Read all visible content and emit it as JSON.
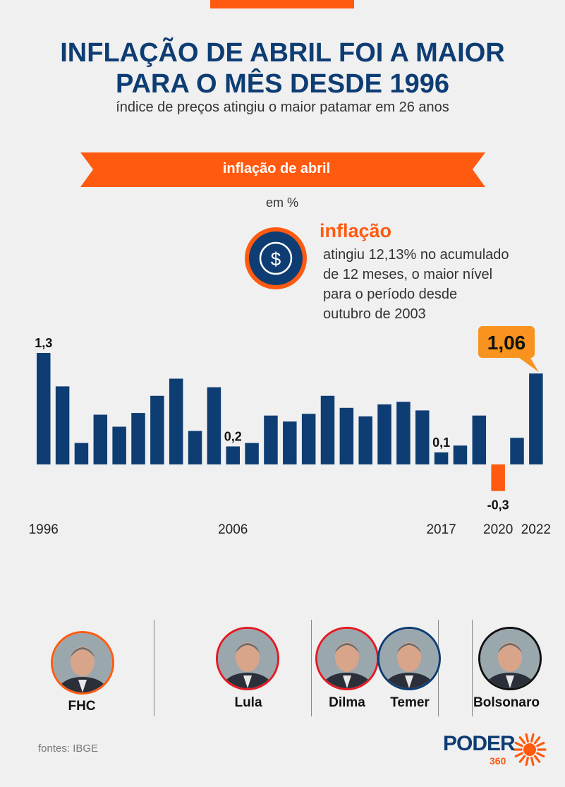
{
  "header": {
    "title_line1": "INFLAÇÃO DE ABRIL FOI A MAIOR",
    "title_line2": "PARA O MÊS DESDE 1996",
    "subtitle": "índice de preços atingiu o maior patamar em 26 anos"
  },
  "banner": {
    "label": "inflação de abril"
  },
  "unit_label": "em %",
  "annotation": {
    "icon": "dollar-coin-icon",
    "heading": "inflação",
    "text": "atingiu 12,13% no acumulado\nde 12 meses, o maior nível\npara o período desde\noutubro de 2003"
  },
  "chart_data": {
    "type": "bar",
    "categories": [
      "1996",
      "1997",
      "1998",
      "1999",
      "2000",
      "2001",
      "2002",
      "2003",
      "2004",
      "2005",
      "2006",
      "2007",
      "2008",
      "2009",
      "2010",
      "2011",
      "2012",
      "2013",
      "2014",
      "2015",
      "2016",
      "2017",
      "2018",
      "2019",
      "2020",
      "2021",
      "2022"
    ],
    "values": [
      1.3,
      0.91,
      0.25,
      0.58,
      0.44,
      0.6,
      0.8,
      1.0,
      0.39,
      0.9,
      0.21,
      0.25,
      0.57,
      0.5,
      0.59,
      0.8,
      0.66,
      0.56,
      0.7,
      0.73,
      0.63,
      0.14,
      0.22,
      0.57,
      -0.31,
      0.31,
      1.06
    ],
    "x_tick_labels": [
      "1996",
      "2006",
      "2017",
      "2020",
      "2022"
    ],
    "data_labels": {
      "1996": "1,3",
      "2006": "0,2",
      "2017": "0,1",
      "2020": "-0,3"
    },
    "highlight": {
      "category": "2022",
      "label": "1,06"
    },
    "ylim": [
      -0.31,
      1.3
    ],
    "grid": false,
    "colors": {
      "positive": "#0e3d73",
      "negative": "#ff5a10",
      "highlight_box": "#f7931e"
    }
  },
  "presidents": [
    {
      "name": "FHC",
      "ring": "#ff5a10"
    },
    {
      "name": "Lula",
      "ring": "#e31b23"
    },
    {
      "name": "Dilma",
      "ring": "#e31b23"
    },
    {
      "name": "Temer",
      "ring": "#0e3d73"
    },
    {
      "name": "Bolsonaro",
      "ring": "#111111"
    }
  ],
  "footer": {
    "source": "fontes: IBGE",
    "logo_word": "PODER",
    "logo_number": "360"
  }
}
